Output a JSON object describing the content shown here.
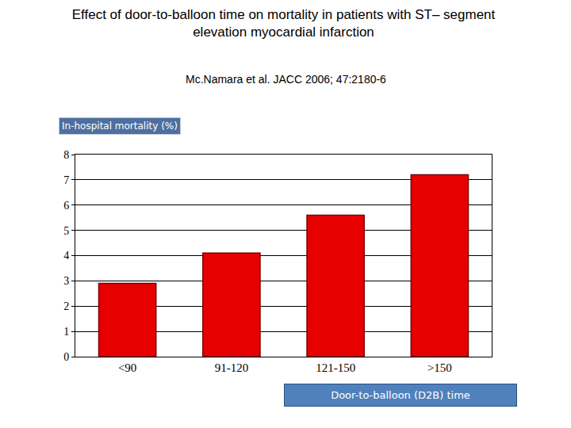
{
  "chart_data": {
    "type": "bar",
    "title": "Effect of door-to-balloon time on mortality in patients with ST– segment elevation myocardial infarction",
    "subtitle": "Mc.Namara et al. JACC 2006; 47:2180-6",
    "y_label": "In-hospital mortality (%)",
    "x_label": "Door-to-balloon (D2B) time",
    "categories": [
      "<90",
      "91-120",
      "121-150",
      ">150"
    ],
    "values": [
      2.9,
      4.1,
      5.6,
      7.2
    ],
    "color": "#e60000",
    "ylim": [
      0,
      8
    ],
    "yticks": [
      0,
      1,
      2,
      3,
      4,
      5,
      6,
      7,
      8
    ],
    "grid": true
  }
}
